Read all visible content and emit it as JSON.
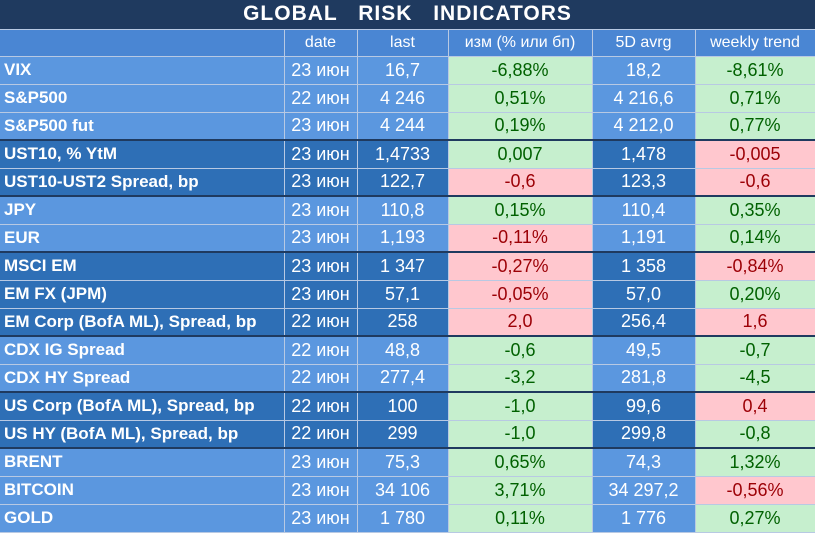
{
  "title": "GLOBAL   RISK   INDICATORS",
  "headers": [
    "",
    "date",
    "last",
    "изм (% или бп)",
    "5D avrg",
    "weekly trend"
  ],
  "colors": {
    "title_bg": "#1f3a5f",
    "light_group": "#5b97df",
    "dark_group": "#2e6fb6",
    "positive_bg": "#c6efce",
    "positive_text": "#006100",
    "negative_bg": "#ffc7ce",
    "negative_text": "#9c0006"
  },
  "rows": [
    {
      "name": "VIX",
      "date": "23 июн",
      "last": "16,7",
      "chg": "-6,88%",
      "chg_state": "pos",
      "avg": "18,2",
      "trend": "-8,61%",
      "trend_state": "pos",
      "group": "lt"
    },
    {
      "name": "S&P500",
      "date": "22 июн",
      "last": "4 246",
      "chg": "0,51%",
      "chg_state": "pos",
      "avg": "4 216,6",
      "trend": "0,71%",
      "trend_state": "pos",
      "group": "lt"
    },
    {
      "name": "S&P500 fut",
      "date": "23 июн",
      "last": "4 244",
      "chg": "0,19%",
      "chg_state": "pos",
      "avg": "4 212,0",
      "trend": "0,77%",
      "trend_state": "pos",
      "group": "lt"
    },
    {
      "name": "UST10, % YtM",
      "date": "23 июн",
      "last": "1,4733",
      "chg": "0,007",
      "chg_state": "pos",
      "avg": "1,478",
      "trend": "-0,005",
      "trend_state": "neg",
      "group": "dk"
    },
    {
      "name": "UST10-UST2 Spread, bp",
      "date": "23 июн",
      "last": "122,7",
      "chg": "-0,6",
      "chg_state": "neg",
      "avg": "123,3",
      "trend": "-0,6",
      "trend_state": "neg",
      "group": "dk"
    },
    {
      "name": "JPY",
      "date": "23 июн",
      "last": "110,8",
      "chg": "0,15%",
      "chg_state": "pos",
      "avg": "110,4",
      "trend": "0,35%",
      "trend_state": "pos",
      "group": "lt"
    },
    {
      "name": "EUR",
      "date": "23 июн",
      "last": "1,193",
      "chg": "-0,11%",
      "chg_state": "neg",
      "avg": "1,191",
      "trend": "0,14%",
      "trend_state": "pos",
      "group": "lt"
    },
    {
      "name": "MSCI EM",
      "date": "23 июн",
      "last": "1 347",
      "chg": "-0,27%",
      "chg_state": "neg",
      "avg": "1 358",
      "trend": "-0,84%",
      "trend_state": "neg",
      "group": "dk"
    },
    {
      "name": "EM FX (JPM)",
      "date": "23 июн",
      "last": "57,1",
      "chg": "-0,05%",
      "chg_state": "neg",
      "avg": "57,0",
      "trend": "0,20%",
      "trend_state": "pos",
      "group": "dk"
    },
    {
      "name": "EM Corp (BofA ML), Spread, bp",
      "date": "22 июн",
      "last": "258",
      "chg": "2,0",
      "chg_state": "neg",
      "avg": "256,4",
      "trend": "1,6",
      "trend_state": "neg",
      "group": "dk"
    },
    {
      "name": "CDX IG Spread",
      "date": "22 июн",
      "last": "48,8",
      "chg": "-0,6",
      "chg_state": "pos",
      "avg": "49,5",
      "trend": "-0,7",
      "trend_state": "pos",
      "group": "lt"
    },
    {
      "name": "CDX HY Spread",
      "date": "22 июн",
      "last": "277,4",
      "chg": "-3,2",
      "chg_state": "pos",
      "avg": "281,8",
      "trend": "-4,5",
      "trend_state": "pos",
      "group": "lt"
    },
    {
      "name": "US Corp (BofA ML), Spread, bp",
      "date": "22 июн",
      "last": "100",
      "chg": "-1,0",
      "chg_state": "pos",
      "avg": "99,6",
      "trend": "0,4",
      "trend_state": "neg",
      "group": "dk"
    },
    {
      "name": "US HY (BofA ML), Spread, bp",
      "date": "22 июн",
      "last": "299",
      "chg": "-1,0",
      "chg_state": "pos",
      "avg": "299,8",
      "trend": "-0,8",
      "trend_state": "pos",
      "group": "dk"
    },
    {
      "name": "BRENT",
      "date": "23 июн",
      "last": "75,3",
      "chg": "0,65%",
      "chg_state": "pos",
      "avg": "74,3",
      "trend": "1,32%",
      "trend_state": "pos",
      "group": "lt"
    },
    {
      "name": "BITCOIN",
      "date": "23 июн",
      "last": "34 106",
      "chg": "3,71%",
      "chg_state": "pos",
      "avg": "34 297,2",
      "trend": "-0,56%",
      "trend_state": "neg",
      "group": "lt"
    },
    {
      "name": "GOLD",
      "date": "23 июн",
      "last": "1 780",
      "chg": "0,11%",
      "chg_state": "pos",
      "avg": "1 776",
      "trend": "0,27%",
      "trend_state": "pos",
      "group": "lt"
    }
  ]
}
